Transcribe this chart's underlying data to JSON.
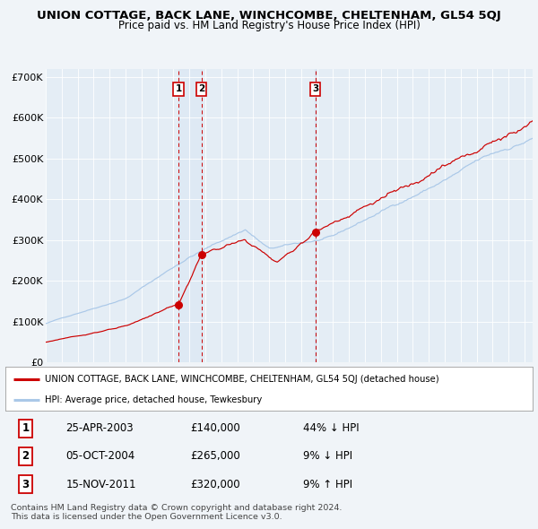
{
  "title": "UNION COTTAGE, BACK LANE, WINCHCOMBE, CHELTENHAM, GL54 5QJ",
  "subtitle": "Price paid vs. HM Land Registry's House Price Index (HPI)",
  "title_fontsize": 9.5,
  "subtitle_fontsize": 8.5,
  "bg_color": "#f0f4f8",
  "plot_bg_color": "#e4edf5",
  "grid_color": "#ffffff",
  "hpi_color": "#aac8e8",
  "red_line_color": "#cc0000",
  "sale_marker_color": "#cc0000",
  "dashed_line_color": "#cc0000",
  "ylim": [
    0,
    720000
  ],
  "yticks": [
    0,
    100000,
    200000,
    300000,
    400000,
    500000,
    600000,
    700000
  ],
  "ytick_labels": [
    "£0",
    "£100K",
    "£200K",
    "£300K",
    "£400K",
    "£500K",
    "£600K",
    "£700K"
  ],
  "xstart": 1995.0,
  "xend": 2025.5,
  "xticks": [
    1995,
    1996,
    1997,
    1998,
    1999,
    2000,
    2001,
    2002,
    2003,
    2004,
    2005,
    2006,
    2007,
    2008,
    2009,
    2010,
    2011,
    2012,
    2013,
    2014,
    2015,
    2016,
    2017,
    2018,
    2019,
    2020,
    2021,
    2022,
    2023,
    2024,
    2025
  ],
  "sale_dates": [
    2003.31,
    2004.75,
    2011.88
  ],
  "sale_prices": [
    140000,
    265000,
    320000
  ],
  "sale_labels": [
    "1",
    "2",
    "3"
  ],
  "legend_red_label": "UNION COTTAGE, BACK LANE, WINCHCOMBE, CHELTENHAM, GL54 5QJ (detached house)",
  "legend_blue_label": "HPI: Average price, detached house, Tewkesbury",
  "table_data": [
    [
      "1",
      "25-APR-2003",
      "£140,000",
      "44% ↓ HPI"
    ],
    [
      "2",
      "05-OCT-2004",
      "£265,000",
      "9% ↓ HPI"
    ],
    [
      "3",
      "15-NOV-2011",
      "£320,000",
      "9% ↑ HPI"
    ]
  ],
  "footer_text": "Contains HM Land Registry data © Crown copyright and database right 2024.\nThis data is licensed under the Open Government Licence v3.0.",
  "hpi_seed": 42,
  "red_seed": 123
}
